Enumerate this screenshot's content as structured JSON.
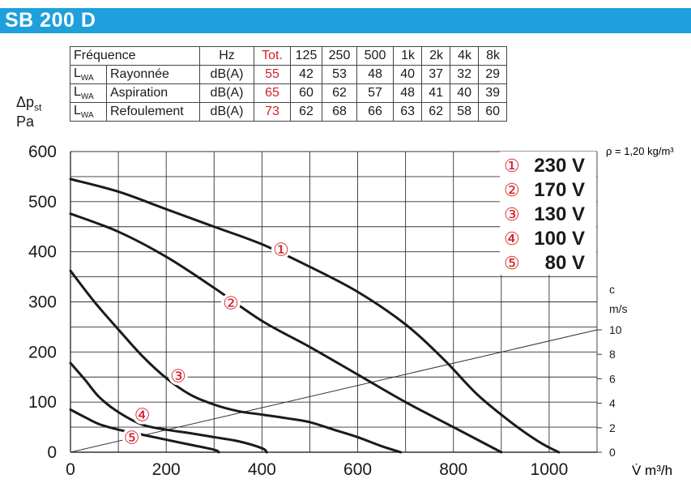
{
  "title": "SB 200 D",
  "sound_table": {
    "header": [
      "Fréquence",
      "Hz",
      "Tot.",
      "125",
      "250",
      "500",
      "1k",
      "2k",
      "4k",
      "8k"
    ],
    "rows": [
      {
        "sym": "L",
        "sub": "WA",
        "label": "Rayonnée",
        "unit": "dB(A)",
        "tot": "55",
        "values": [
          "42",
          "53",
          "48",
          "40",
          "37",
          "32",
          "29"
        ]
      },
      {
        "sym": "L",
        "sub": "WA",
        "label": "Aspiration",
        "unit": "dB(A)",
        "tot": "65",
        "values": [
          "60",
          "62",
          "57",
          "48",
          "41",
          "40",
          "39"
        ]
      },
      {
        "sym": "L",
        "sub": "WA",
        "label": "Refoulement",
        "unit": "dB(A)",
        "tot": "73",
        "values": [
          "62",
          "68",
          "66",
          "63",
          "62",
          "58",
          "60"
        ]
      }
    ]
  },
  "y_axis_label": {
    "main": "Δp",
    "sub": "st",
    "unit": "Pa"
  },
  "density_note": "ρ = 1,20 kg/m³",
  "legend": [
    {
      "marker": "①",
      "label": "230 V"
    },
    {
      "marker": "②",
      "label": "170 V"
    },
    {
      "marker": "③",
      "label": "130 V"
    },
    {
      "marker": "④",
      "label": "100 V"
    },
    {
      "marker": "⑤",
      "label": "80 V"
    }
  ],
  "colors": {
    "title_bar": "#1ea0dc",
    "accent_red": "#d42027",
    "curve": "#1a1a1a"
  },
  "chart_data": {
    "type": "line",
    "xlabel": "V̇ m³/h",
    "ylabel": "Δpst Pa",
    "xlim": [
      0,
      1100
    ],
    "ylim": [
      0,
      600
    ],
    "x_ticks": [
      0,
      200,
      400,
      600,
      800,
      1000
    ],
    "y_ticks": [
      0,
      100,
      200,
      300,
      400,
      500,
      600
    ],
    "grid": true,
    "legend_position": "top-right",
    "series": [
      {
        "name": "230 V",
        "marker": "①",
        "label_at": [
          440,
          405
        ],
        "points": [
          [
            0,
            545
          ],
          [
            100,
            520
          ],
          [
            200,
            485
          ],
          [
            300,
            450
          ],
          [
            400,
            415
          ],
          [
            500,
            370
          ],
          [
            600,
            320
          ],
          [
            700,
            255
          ],
          [
            780,
            185
          ],
          [
            850,
            115
          ],
          [
            920,
            60
          ],
          [
            980,
            20
          ],
          [
            1020,
            0
          ]
        ]
      },
      {
        "name": "170 V",
        "marker": "②",
        "label_at": [
          335,
          298
        ],
        "points": [
          [
            0,
            476
          ],
          [
            100,
            440
          ],
          [
            200,
            390
          ],
          [
            300,
            328
          ],
          [
            400,
            262
          ],
          [
            500,
            210
          ],
          [
            600,
            155
          ],
          [
            700,
            100
          ],
          [
            800,
            50
          ],
          [
            860,
            20
          ],
          [
            900,
            0
          ]
        ]
      },
      {
        "name": "130 V",
        "marker": "③",
        "label_at": [
          225,
          153
        ],
        "points": [
          [
            0,
            362
          ],
          [
            50,
            300
          ],
          [
            100,
            245
          ],
          [
            150,
            192
          ],
          [
            200,
            148
          ],
          [
            250,
            115
          ],
          [
            300,
            95
          ],
          [
            350,
            82
          ],
          [
            400,
            75
          ],
          [
            450,
            68
          ],
          [
            500,
            60
          ],
          [
            550,
            45
          ],
          [
            600,
            30
          ],
          [
            650,
            12
          ],
          [
            690,
            0
          ]
        ]
      },
      {
        "name": "100 V",
        "marker": "④",
        "label_at": [
          150,
          75
        ],
        "points": [
          [
            0,
            178
          ],
          [
            30,
            145
          ],
          [
            60,
            110
          ],
          [
            100,
            80
          ],
          [
            150,
            55
          ],
          [
            200,
            45
          ],
          [
            250,
            38
          ],
          [
            300,
            30
          ],
          [
            350,
            22
          ],
          [
            400,
            8
          ],
          [
            410,
            0
          ]
        ]
      },
      {
        "name": "80 V",
        "marker": "⑤",
        "label_at": [
          128,
          30
        ],
        "points": [
          [
            0,
            85
          ],
          [
            30,
            70
          ],
          [
            60,
            56
          ],
          [
            100,
            45
          ],
          [
            150,
            35
          ],
          [
            200,
            25
          ],
          [
            250,
            15
          ],
          [
            300,
            5
          ],
          [
            310,
            0
          ]
        ]
      }
    ],
    "velocity_axis": {
      "label": "c",
      "unit": "m/s",
      "ticks": [
        0,
        2,
        4,
        6,
        8,
        10
      ],
      "line_end_x": 1100,
      "line_end_c": 10
    }
  }
}
